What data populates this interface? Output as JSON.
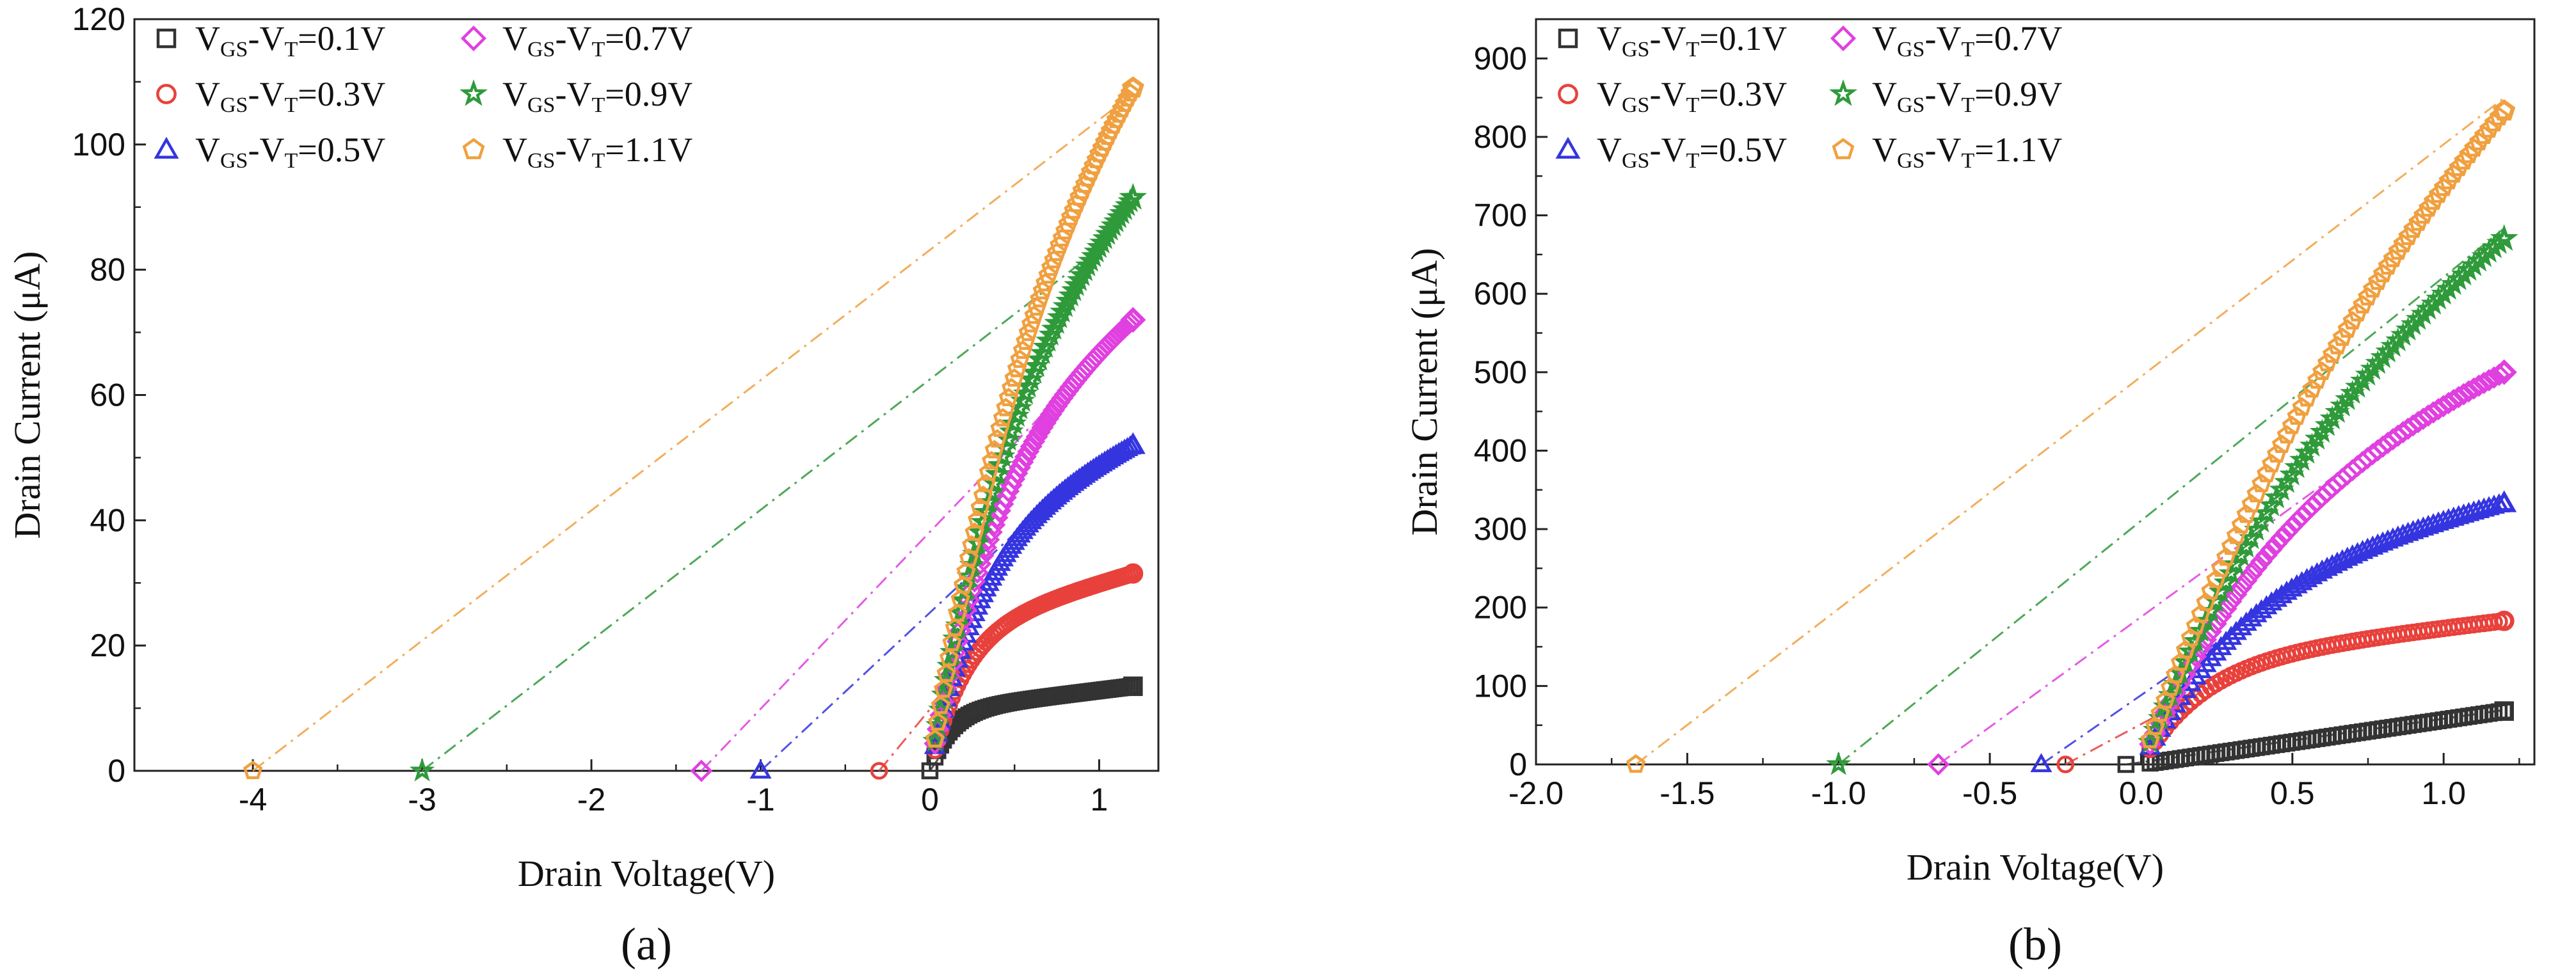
{
  "chart_data": [
    {
      "type": "scatter",
      "panel_label": "(a)",
      "xlabel": "Drain Voltage(V)",
      "ylabel": "Drain Current (μA)",
      "xlim": [
        -4.7,
        1.35
      ],
      "ylim": [
        0,
        120
      ],
      "xticks": [
        -4,
        -3,
        -2,
        -1,
        0,
        1
      ],
      "yticks": [
        0,
        20,
        40,
        60,
        80,
        100,
        120
      ],
      "legend_position": "top-left",
      "series": [
        {
          "name": "VGS-VT=0.1V",
          "legend": {
            "main": "V",
            "sub1": "GS",
            "mid": "-V",
            "sub2": "T",
            "value": "=0.1V"
          },
          "color": "#333333",
          "marker": "square",
          "isat": 13.5,
          "knee": 0.12,
          "fit_x0": 0.0
        },
        {
          "name": "VGS-VT=0.3V",
          "legend": {
            "main": "V",
            "sub1": "GS",
            "mid": "-V",
            "sub2": "T",
            "value": "=0.3V"
          },
          "color": "#e8413c",
          "marker": "circle",
          "isat": 31.5,
          "knee": 0.2,
          "fit_x0": -0.3
        },
        {
          "name": "VGS-VT=0.5V",
          "legend": {
            "main": "V",
            "sub1": "GS",
            "mid": "-V",
            "sub2": "T",
            "value": "=0.5V"
          },
          "color": "#3535e0",
          "marker": "triangle",
          "isat": 52,
          "knee": 0.3,
          "fit_x0": -1.0
        },
        {
          "name": "VGS-VT=0.7V",
          "legend": {
            "main": "V",
            "sub1": "GS",
            "mid": "-V",
            "sub2": "T",
            "value": "=0.7V"
          },
          "color": "#e040e0",
          "marker": "diamond",
          "isat": 72,
          "knee": 0.4,
          "fit_x0": -1.35
        },
        {
          "name": "VGS-VT=0.9V",
          "legend": {
            "main": "V",
            "sub1": "GS",
            "mid": "-V",
            "sub2": "T",
            "value": "=0.9V"
          },
          "color": "#2f9a3a",
          "marker": "star",
          "isat": 91.5,
          "knee": 0.5,
          "fit_x0": -3.0
        },
        {
          "name": "VGS-VT=1.1V",
          "legend": {
            "main": "V",
            "sub1": "GS",
            "mid": "-V",
            "sub2": "T",
            "value": "=1.1V"
          },
          "color": "#f0a040",
          "marker": "pentagon",
          "isat": 109,
          "knee": 0.6,
          "fit_x0": -4.0
        }
      ]
    },
    {
      "type": "scatter",
      "panel_label": "(b)",
      "xlabel": "Drain Voltage(V)",
      "ylabel": "Drain Current (μA)",
      "xlim": [
        -2.0,
        1.3
      ],
      "ylim": [
        0,
        950
      ],
      "xticks": [
        -2.0,
        -1.5,
        -1.0,
        -0.5,
        0.0,
        0.5,
        1.0
      ],
      "xtick_labels": [
        "-2.0",
        "-1.5",
        "-1.0",
        "-0.5",
        "0.0",
        "0.5",
        "1.0"
      ],
      "yticks": [
        0,
        100,
        200,
        300,
        400,
        500,
        600,
        700,
        800,
        900
      ],
      "legend_position": "top-left",
      "series": [
        {
          "name": "VGS-VT=0.1V",
          "legend": {
            "main": "V",
            "sub1": "GS",
            "mid": "-V",
            "sub2": "T",
            "value": "=0.1V"
          },
          "color": "#333333",
          "marker": "square",
          "isat": 68,
          "knee": 0.06,
          "fit_x0": -0.05,
          "lin": true
        },
        {
          "name": "VGS-VT=0.3V",
          "legend": {
            "main": "V",
            "sub1": "GS",
            "mid": "-V",
            "sub2": "T",
            "value": "=0.3V"
          },
          "color": "#e8413c",
          "marker": "circle",
          "isat": 183,
          "knee": 0.2,
          "fit_x0": -0.25
        },
        {
          "name": "VGS-VT=0.5V",
          "legend": {
            "main": "V",
            "sub1": "GS",
            "mid": "-V",
            "sub2": "T",
            "value": "=0.5V"
          },
          "color": "#3535e0",
          "marker": "triangle",
          "isat": 333,
          "knee": 0.35,
          "fit_x0": -0.33
        },
        {
          "name": "VGS-VT=0.7V",
          "legend": {
            "main": "V",
            "sub1": "GS",
            "mid": "-V",
            "sub2": "T",
            "value": "=0.7V"
          },
          "color": "#e040e0",
          "marker": "diamond",
          "isat": 500,
          "knee": 0.5,
          "fit_x0": -0.67
        },
        {
          "name": "VGS-VT=0.9V",
          "legend": {
            "main": "V",
            "sub1": "GS",
            "mid": "-V",
            "sub2": "T",
            "value": "=0.9V"
          },
          "color": "#2f9a3a",
          "marker": "star",
          "isat": 670,
          "knee": 0.7,
          "fit_x0": -1.0
        },
        {
          "name": "VGS-VT=1.1V",
          "legend": {
            "main": "V",
            "sub1": "GS",
            "mid": "-V",
            "sub2": "T",
            "value": "=1.1V"
          },
          "color": "#f0a040",
          "marker": "pentagon",
          "isat": 833,
          "knee": 0.9,
          "fit_x0": -1.67
        }
      ]
    }
  ]
}
